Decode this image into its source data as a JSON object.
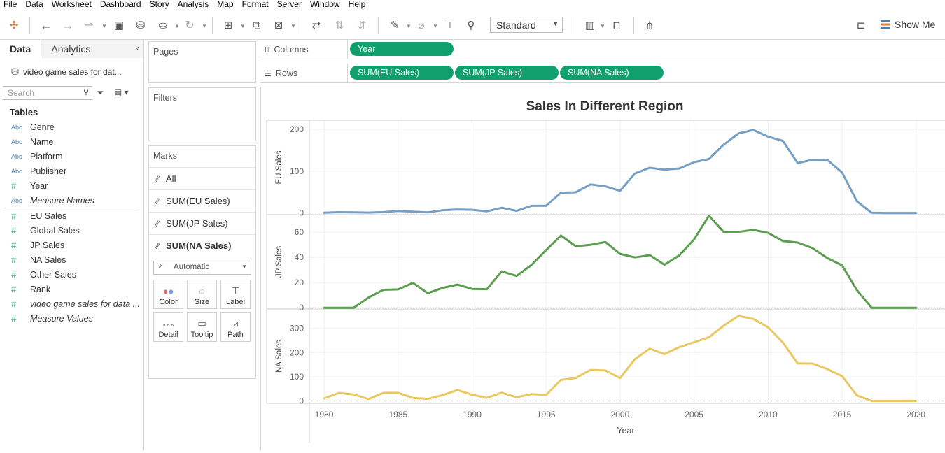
{
  "menu": [
    "File",
    "Data",
    "Worksheet",
    "Dashboard",
    "Story",
    "Analysis",
    "Map",
    "Format",
    "Server",
    "Window",
    "Help"
  ],
  "toolbar": {
    "fit_select": "Standard",
    "show_me": "Show Me",
    "icons": [
      "tableau-logo-icon",
      "back-icon",
      "forward-icon",
      "redo-icon",
      "save-icon",
      "new-datasource-icon",
      "pause-updates-icon",
      "refresh-icon",
      "new-worksheet-icon",
      "duplicate-icon",
      "clear-sheet-icon",
      "swap-icon",
      "sort-ascending-icon",
      "sort-descending-icon",
      "highlight-icon",
      "group-icon",
      "text-label-icon",
      "pin-icon",
      "chart-type-icon",
      "presentation-icon",
      "share-icon",
      "tooltip-pointer-icon"
    ]
  },
  "data_pane": {
    "tab_data": "Data",
    "tab_analytics": "Analytics",
    "datasource": "video game sales for dat...",
    "search_placeholder": "Search",
    "tables_header": "Tables",
    "dimensions": [
      {
        "type": "Abc",
        "name": "Genre",
        "italic": false
      },
      {
        "type": "Abc",
        "name": "Name",
        "italic": false
      },
      {
        "type": "Abc",
        "name": "Platform",
        "italic": false
      },
      {
        "type": "Abc",
        "name": "Publisher",
        "italic": false
      },
      {
        "type": "#",
        "name": "Year",
        "italic": false
      },
      {
        "type": "Abc",
        "name": "Measure Names",
        "italic": true
      }
    ],
    "measures": [
      {
        "type": "#",
        "name": "EU Sales",
        "italic": false
      },
      {
        "type": "#",
        "name": "Global Sales",
        "italic": false
      },
      {
        "type": "#",
        "name": "JP Sales",
        "italic": false
      },
      {
        "type": "#",
        "name": "NA Sales",
        "italic": false
      },
      {
        "type": "#",
        "name": "Other Sales",
        "italic": false
      },
      {
        "type": "#",
        "name": "Rank",
        "italic": false
      },
      {
        "type": "#",
        "name": "video game sales for data ...",
        "italic": true
      },
      {
        "type": "#",
        "name": "Measure Values",
        "italic": true
      }
    ]
  },
  "cards": {
    "pages": "Pages",
    "filters": "Filters",
    "marks": "Marks",
    "marks_rows": [
      "All",
      "SUM(EU Sales)",
      "SUM(JP Sales)",
      "SUM(NA Sales)"
    ],
    "mark_type": "Automatic",
    "buttons": [
      "Color",
      "Size",
      "Label",
      "Detail",
      "Tooltip",
      "Path"
    ]
  },
  "shelves": {
    "columns_label": "Columns",
    "rows_label": "Rows",
    "columns_pills": [
      "Year"
    ],
    "rows_pills": [
      "SUM(EU Sales)",
      "SUM(JP Sales)",
      "SUM(NA Sales)"
    ]
  },
  "chart_data": {
    "type": "line",
    "title": "Sales In Different Region",
    "xlabel": "Year",
    "x": [
      1980,
      1981,
      1982,
      1983,
      1984,
      1985,
      1986,
      1987,
      1988,
      1989,
      1990,
      1991,
      1992,
      1993,
      1994,
      1995,
      1996,
      1997,
      1998,
      1999,
      2000,
      2001,
      2002,
      2003,
      2004,
      2005,
      2006,
      2007,
      2008,
      2009,
      2010,
      2011,
      2012,
      2013,
      2014,
      2015,
      2016,
      2017,
      2018,
      2019,
      2020
    ],
    "xticks": [
      1980,
      1985,
      1990,
      1995,
      2000,
      2005,
      2010,
      2015,
      2020
    ],
    "xlim": [
      1979,
      2022
    ],
    "series": [
      {
        "name": "EU Sales",
        "ylabel": "EU Sales",
        "color": "#759fc4",
        "ylim": [
          -4,
          222
        ],
        "yticks": [
          0,
          100,
          200
        ],
        "values": [
          0.5,
          1.9,
          1.6,
          0.8,
          2.1,
          4.7,
          3.0,
          1.4,
          6.6,
          8.4,
          7.6,
          4.1,
          12.4,
          5.1,
          17.1,
          17.3,
          48.6,
          49.6,
          68.3,
          63.6,
          53.1,
          94.5,
          108.2,
          103.5,
          106.5,
          121.6,
          129.1,
          163.6,
          190.6,
          198.6,
          182.9,
          172.6,
          119.4,
          127.4,
          127.0,
          96.9,
          27.9,
          0.6,
          0.0,
          0.0,
          0.0
        ]
      },
      {
        "name": "JP Sales",
        "ylabel": "JP Sales",
        "color": "#5b9e4f",
        "ylim": [
          -1,
          74
        ],
        "yticks": [
          0,
          20,
          40,
          60
        ],
        "values": [
          0.0,
          0.0,
          0.0,
          8.1,
          14.3,
          14.6,
          19.8,
          11.6,
          15.8,
          18.4,
          15.0,
          14.8,
          28.9,
          25.3,
          33.9,
          45.8,
          57.4,
          48.9,
          50.0,
          52.2,
          42.8,
          40.0,
          41.8,
          34.2,
          41.6,
          54.3,
          73.1,
          60.3,
          60.3,
          61.9,
          59.5,
          53.0,
          51.8,
          47.4,
          39.5,
          33.7,
          14.0,
          0.0,
          0.0,
          0.0,
          0.0
        ]
      },
      {
        "name": "NA Sales",
        "ylabel": "NA Sales",
        "color": "#eac861",
        "ylim": [
          -10,
          380
        ],
        "yticks": [
          0,
          100,
          200,
          300
        ],
        "values": [
          10.6,
          33.4,
          26.9,
          7.8,
          33.3,
          33.7,
          12.5,
          8.5,
          23.9,
          45.2,
          25.5,
          12.8,
          33.9,
          15.1,
          28.2,
          24.8,
          86.8,
          94.8,
          128.4,
          126.1,
          94.5,
          173.0,
          216.2,
          193.6,
          222.6,
          242.6,
          263.1,
          311.2,
          351.4,
          338.9,
          304.2,
          241.2,
          154.9,
          154.8,
          131.9,
          102.8,
          22.7,
          0.0,
          0.0,
          0.0,
          0.3
        ]
      }
    ]
  }
}
